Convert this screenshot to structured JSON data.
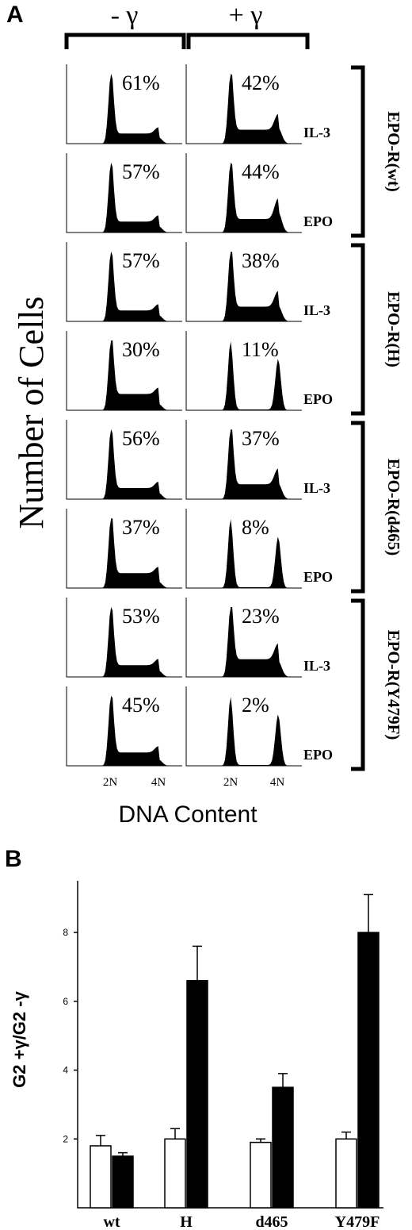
{
  "panel_a": {
    "panel_label": "A",
    "column_headers": [
      "- γ",
      "+ γ"
    ],
    "y_axis_label": "Number of Cells",
    "x_axis_label": "DNA Content",
    "x_ticks": [
      "2N",
      "4N"
    ],
    "groups": [
      {
        "name": "EPO-R(wt)",
        "rows": [
          {
            "factor": "IL-3",
            "minus_pct": "61%",
            "plus_pct": "42%"
          },
          {
            "factor": "EPO",
            "minus_pct": "57%",
            "plus_pct": "44%"
          }
        ]
      },
      {
        "name": "EPO-R(H)",
        "rows": [
          {
            "factor": "IL-3",
            "minus_pct": "57%",
            "plus_pct": "38%"
          },
          {
            "factor": "EPO",
            "minus_pct": "30%",
            "plus_pct": "11%"
          }
        ]
      },
      {
        "name": "EPO-R(d465)",
        "rows": [
          {
            "factor": "IL-3",
            "minus_pct": "56%",
            "plus_pct": "37%"
          },
          {
            "factor": "EPO",
            "minus_pct": "37%",
            "plus_pct": "8%"
          }
        ]
      },
      {
        "name": "EPO-R(Y479F)",
        "rows": [
          {
            "factor": "IL-3",
            "minus_pct": "53%",
            "plus_pct": "23%"
          },
          {
            "factor": "EPO",
            "minus_pct": "45%",
            "plus_pct": "2%"
          }
        ]
      }
    ]
  },
  "chart_data": {
    "type": "bar",
    "panel_label": "B",
    "ylabel": "G2 +γ/G2 -γ",
    "xlabel": "",
    "categories": [
      "wt",
      "H",
      "d465",
      "Y479F"
    ],
    "ylim": [
      0,
      9.5
    ],
    "yticks": [
      2,
      4,
      6,
      8
    ],
    "series": [
      {
        "fill": "#ffffff",
        "values": [
          1.8,
          2.0,
          1.9,
          2.0
        ],
        "errors": [
          0.3,
          0.3,
          0.1,
          0.2
        ]
      },
      {
        "fill": "#000000",
        "values": [
          1.5,
          6.6,
          3.5,
          8.0
        ],
        "errors": [
          0.1,
          1.0,
          0.4,
          1.1
        ]
      }
    ]
  }
}
